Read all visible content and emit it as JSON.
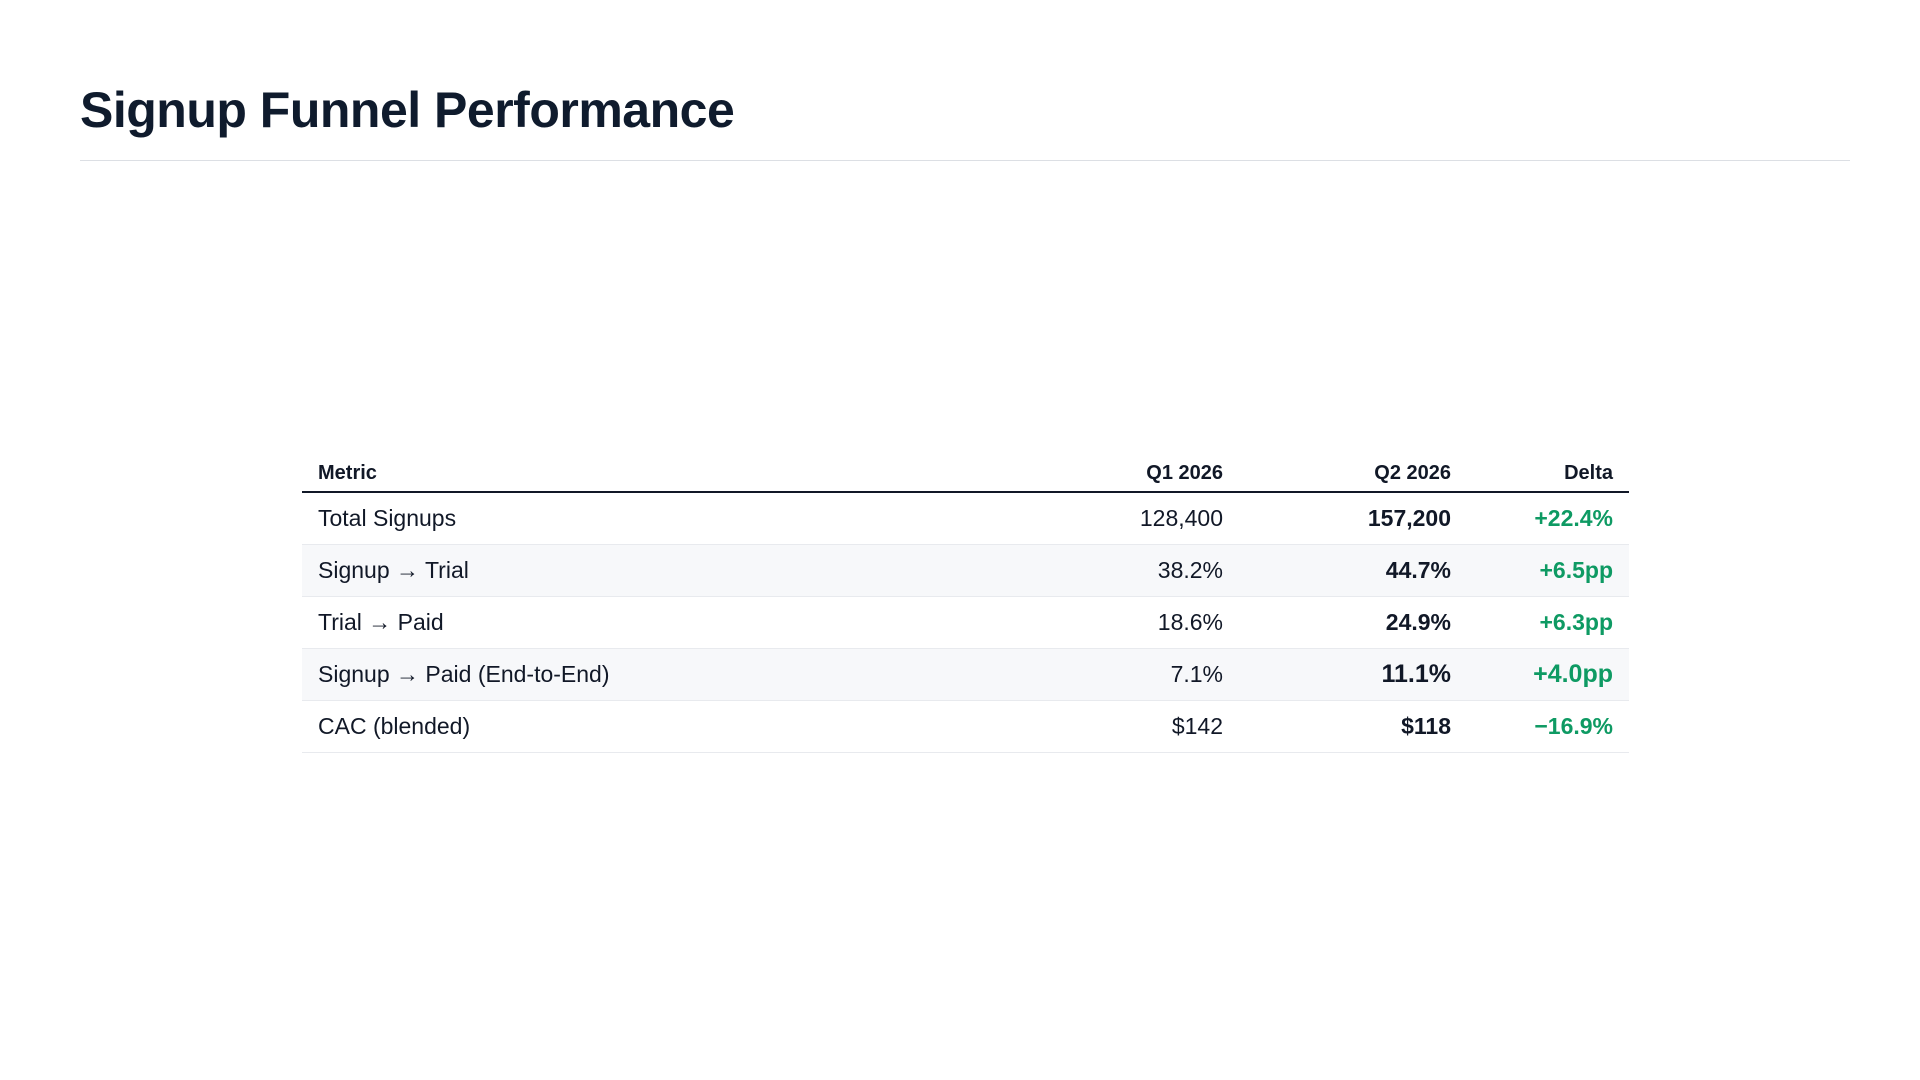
{
  "page": {
    "title": "Signup Funnel Performance"
  },
  "table": {
    "headers": {
      "metric": "Metric",
      "q1": "Q1 2026",
      "q2": "Q2 2026",
      "delta": "Delta"
    },
    "rows": [
      {
        "metric": "Total Signups",
        "q1": "128,400",
        "q2": "157,200",
        "delta": "+22.4%"
      },
      {
        "metric": "Signup → Trial",
        "q1": "38.2%",
        "q2": "44.7%",
        "delta": "+6.5pp"
      },
      {
        "metric": "Trial → Paid",
        "q1": "18.6%",
        "q2": "24.9%",
        "delta": "+6.3pp"
      },
      {
        "metric": "Signup → Paid (End-to-End)",
        "q1": "7.1%",
        "q2": "11.1%",
        "delta": "+4.0pp"
      },
      {
        "metric": "CAC (blended)",
        "q1": "$142",
        "q2": "$118",
        "delta": "−16.9%"
      }
    ]
  },
  "colors": {
    "positive_delta": "#0e9a63",
    "title": "#0f1b2d",
    "stripe": "#f7f8fa"
  }
}
